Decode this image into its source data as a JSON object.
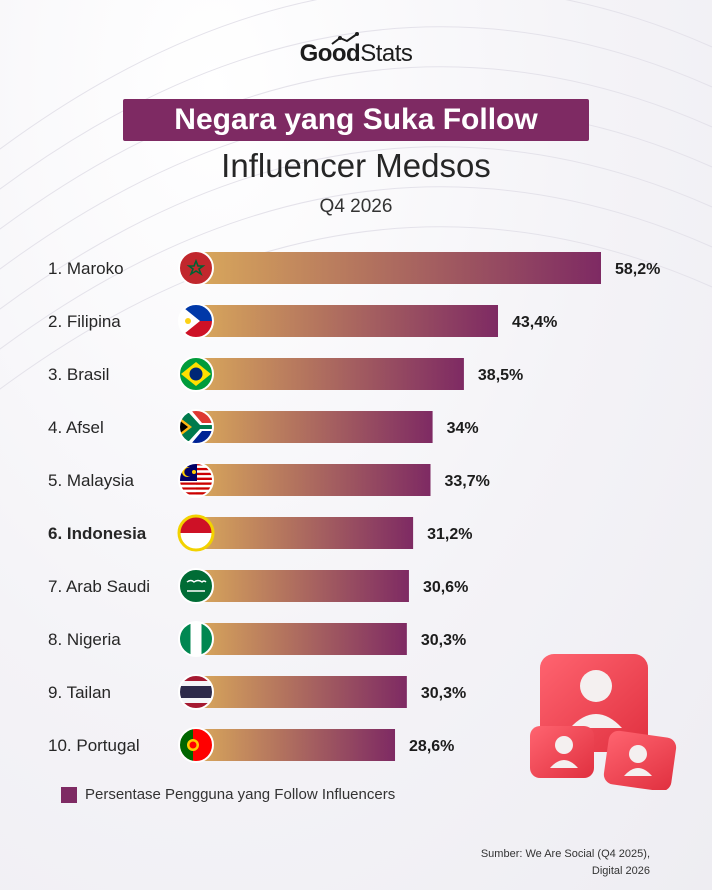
{
  "brand": {
    "logo_bold": "Good",
    "logo_light": "Stats"
  },
  "header": {
    "title_line1": "Negara yang Suka Follow",
    "title_line2": "Influencer Medsos",
    "subtitle": "Q4 2026"
  },
  "legend": {
    "label": "Persentase Pengguna yang Follow Influencers",
    "color": "#7e2a63"
  },
  "source": {
    "line1": "Sumber: We Are Social (Q4 2025),",
    "line2": "Digital 2026"
  },
  "colors": {
    "bar_start": "#d9a85b",
    "bar_end": "#7e2a63",
    "highlight": "#f2d200",
    "decor_red": "#f04455"
  },
  "icons": [
    "person-bubble-icon"
  ],
  "chart_data": {
    "type": "bar",
    "orientation": "horizontal",
    "title": "Negara yang Suka Follow Influencer Medsos",
    "subtitle": "Q4 2026",
    "categories": [
      "1. Maroko",
      "2. Filipina",
      "3. Brasil",
      "4. Afsel",
      "5. Malaysia",
      "6. Indonesia",
      "7. Arab Saudi",
      "8. Nigeria",
      "9. Tailan",
      "10. Portugal"
    ],
    "value_labels": [
      "58,2%",
      "43,4%",
      "38,5%",
      "34%",
      "33,7%",
      "31,2%",
      "30,6%",
      "30,3%",
      "30,3%",
      "28,6%"
    ],
    "series": [
      {
        "name": "Persentase Pengguna yang Follow Influencers",
        "values": [
          58.2,
          43.4,
          38.5,
          34,
          33.7,
          31.2,
          30.6,
          30.3,
          30.3,
          28.6
        ]
      }
    ],
    "flags": [
      "morocco-flag-icon",
      "philippines-flag-icon",
      "brazil-flag-icon",
      "south-africa-flag-icon",
      "malaysia-flag-icon",
      "indonesia-flag-icon",
      "saudi-arabia-flag-icon",
      "nigeria-flag-icon",
      "thailand-flag-icon",
      "portugal-flag-icon"
    ],
    "highlight_index": 5,
    "xlim": [
      0,
      58.2
    ],
    "grid": false,
    "legend_position": "bottom-left"
  }
}
